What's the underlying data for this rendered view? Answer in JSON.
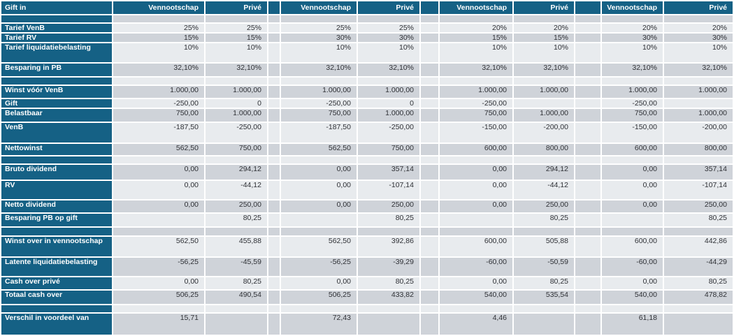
{
  "header": {
    "corner_label": "Gift in",
    "columns": [
      "Vennootschap",
      "Privé",
      "Vennootschap",
      "Privé",
      "Vennootschap",
      "Privé",
      "Vennootschap",
      "Privé"
    ]
  },
  "colors": {
    "header_bg": "#156185",
    "row_light": "#e8ebee",
    "row_dark": "#cfd3d9",
    "label_text": "#ffffff",
    "value_text": "#2f3136",
    "grid_gap": "#ffffff"
  },
  "rows": [
    {
      "id": "spacer-row-1",
      "label": "",
      "values": [
        "",
        "",
        "",
        "",
        "",
        "",
        "",
        ""
      ]
    },
    {
      "id": "tarief-venb",
      "label": "Tarief VenB",
      "values": [
        "25%",
        "25%",
        "25%",
        "25%",
        "20%",
        "20%",
        "20%",
        "20%"
      ]
    },
    {
      "id": "tarief-rv",
      "label": "Tarief RV",
      "values": [
        "15%",
        "15%",
        "30%",
        "30%",
        "15%",
        "15%",
        "30%",
        "30%"
      ]
    },
    {
      "id": "tarief-liquidatiebelasting",
      "label": "Tarief liquidatiebelasting",
      "values": [
        "10%",
        "10%",
        "10%",
        "10%",
        "10%",
        "10%",
        "10%",
        "10%"
      ]
    },
    {
      "id": "besparing-in-pb",
      "label": "Besparing in PB",
      "values": [
        "32,10%",
        "32,10%",
        "32,10%",
        "32,10%",
        "32,10%",
        "32,10%",
        "32,10%",
        "32,10%"
      ]
    },
    {
      "id": "spacer-row-2",
      "label": "",
      "values": [
        "",
        "",
        "",
        "",
        "",
        "",
        "",
        ""
      ]
    },
    {
      "id": "winst-voor-venb",
      "label": "Winst vóór VenB",
      "values": [
        "1.000,00",
        "1.000,00",
        "1.000,00",
        "1.000,00",
        "1.000,00",
        "1.000,00",
        "1.000,00",
        "1.000,00"
      ]
    },
    {
      "id": "gift",
      "label": "Gift",
      "values": [
        "-250,00",
        "0",
        "-250,00",
        "0",
        "-250,00",
        "",
        "-250,00",
        ""
      ]
    },
    {
      "id": "belastbaar",
      "label": "Belastbaar",
      "values": [
        "750,00",
        "1.000,00",
        "750,00",
        "1.000,00",
        "750,00",
        "1.000,00",
        "750,00",
        "1.000,00"
      ]
    },
    {
      "id": "venb",
      "label": "VenB",
      "values": [
        "-187,50",
        "-250,00",
        "-187,50",
        "-250,00",
        "-150,00",
        "-200,00",
        "-150,00",
        "-200,00"
      ]
    },
    {
      "id": "nettowinst",
      "label": "Nettowinst",
      "values": [
        "562,50",
        "750,00",
        "562,50",
        "750,00",
        "600,00",
        "800,00",
        "600,00",
        "800,00"
      ]
    },
    {
      "id": "spacer-row-3",
      "label": "",
      "values": [
        "",
        "",
        "",
        "",
        "",
        "",
        "",
        ""
      ]
    },
    {
      "id": "bruto-dividend",
      "label": "Bruto dividend",
      "values": [
        "0,00",
        "294,12",
        "0,00",
        "357,14",
        "0,00",
        "294,12",
        "0,00",
        "357,14"
      ]
    },
    {
      "id": "rv",
      "label": "RV",
      "values": [
        "0,00",
        "-44,12",
        "0,00",
        "-107,14",
        "0,00",
        "-44,12",
        "0,00",
        "-107,14"
      ]
    },
    {
      "id": "netto-dividend",
      "label": "Netto dividend",
      "values": [
        "0,00",
        "250,00",
        "0,00",
        "250,00",
        "0,00",
        "250,00",
        "0,00",
        "250,00"
      ]
    },
    {
      "id": "besparing-pb-op-gift",
      "label": "Besparing PB op gift",
      "values": [
        "",
        "80,25",
        "",
        "80,25",
        "",
        "80,25",
        "",
        "80,25"
      ]
    },
    {
      "id": "spacer-row-4",
      "label": "",
      "values": [
        "",
        "",
        "",
        "",
        "",
        "",
        "",
        ""
      ]
    },
    {
      "id": "winst-over-in-vennootschap",
      "label": "Winst over in vennootschap",
      "values": [
        "562,50",
        "455,88",
        "562,50",
        "392,86",
        "600,00",
        "505,88",
        "600,00",
        "442,86"
      ]
    },
    {
      "id": "latente-liquidatiebelasting",
      "label": "Latente liquidatiebelasting",
      "values": [
        "-56,25",
        "-45,59",
        "-56,25",
        "-39,29",
        "-60,00",
        "-50,59",
        "-60,00",
        "-44,29"
      ]
    },
    {
      "id": "cash-over-prive",
      "label": "Cash over privé",
      "values": [
        "0,00",
        "80,25",
        "0,00",
        "80,25",
        "0,00",
        "80,25",
        "0,00",
        "80,25"
      ]
    },
    {
      "id": "totaal-cash-over",
      "label": "Totaal cash over",
      "values": [
        "506,25",
        "490,54",
        "506,25",
        "433,82",
        "540,00",
        "535,54",
        "540,00",
        "478,82"
      ]
    },
    {
      "id": "spacer-row-5",
      "label": "",
      "values": [
        "",
        "",
        "",
        "",
        "",
        "",
        "",
        ""
      ]
    },
    {
      "id": "verschil-in-voordeel-van",
      "label": "Verschil in voordeel van",
      "values": [
        "15,71",
        "",
        "72,43",
        "",
        "4,46",
        "",
        "61,18",
        ""
      ]
    }
  ]
}
